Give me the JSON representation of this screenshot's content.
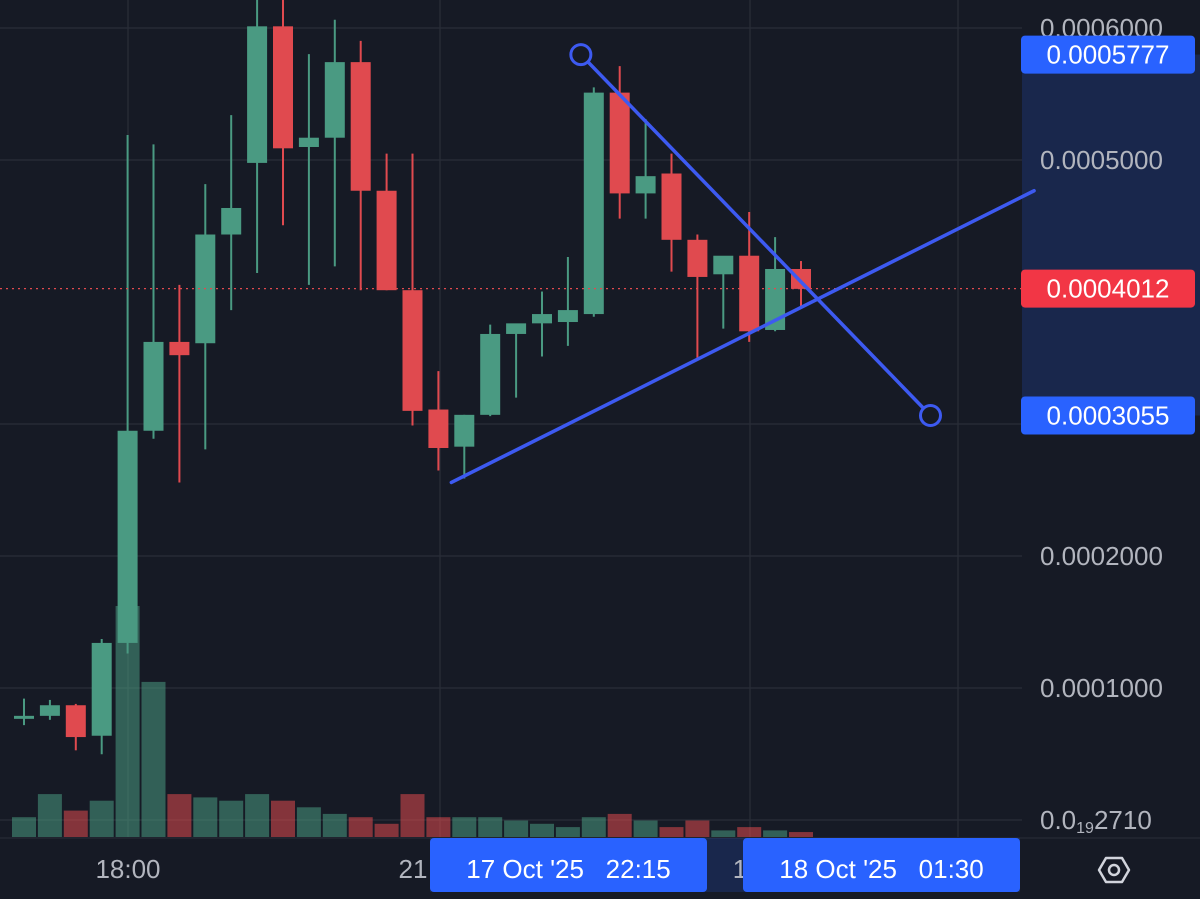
{
  "chart_data": {
    "type": "candlestick",
    "title": "",
    "ylim": [
      1.9e-05,
      0.0006
    ],
    "y_ticks": [
      "0.0006000",
      "0.0005000",
      "0.0002000",
      "0.0001000"
    ],
    "y_bottom_label": {
      "prefix": "0.0",
      "sub": "19",
      "suffix": "2710"
    },
    "x_tick_labels": [
      {
        "label": "18:00"
      },
      {
        "label": "21"
      },
      {
        "label": "1"
      }
    ],
    "price_badges": {
      "upper": {
        "label": "0.0005777",
        "value": 0.0005777,
        "color": "#2962ff"
      },
      "current": {
        "label": "0.0004012",
        "value": 0.0004012,
        "color": "#f23645"
      },
      "lower": {
        "label": "0.0003055",
        "value": 0.0003055,
        "color": "#2962ff"
      }
    },
    "time_badges": [
      {
        "label": "17 Oct '25   22:15",
        "color": "#2962ff"
      },
      {
        "label": "18 Oct '25   01:30",
        "color": "#2962ff"
      }
    ],
    "candles": [
      {
        "o": 7.8e-05,
        "h": 9.2e-05,
        "l": 7.2e-05,
        "c": 7.9e-05
      },
      {
        "o": 7.9e-05,
        "h": 9.1e-05,
        "l": 7.6e-05,
        "c": 8.7e-05
      },
      {
        "o": 8.7e-05,
        "h": 8.8e-05,
        "l": 5.3e-05,
        "c": 6.3e-05
      },
      {
        "o": 6.4e-05,
        "h": 0.000137,
        "l": 5e-05,
        "c": 0.000134
      },
      {
        "o": 0.000134,
        "h": 0.000517,
        "l": 0.000126,
        "c": 0.000294
      },
      {
        "o": 0.000294,
        "h": 0.00051,
        "l": 0.000288,
        "c": 0.000361
      },
      {
        "o": 0.000361,
        "h": 0.000404,
        "l": 0.000255,
        "c": 0.000351
      },
      {
        "o": 0.00036,
        "h": 0.00048,
        "l": 0.00028,
        "c": 0.000442
      },
      {
        "o": 0.000442,
        "h": 0.000532,
        "l": 0.000385,
        "c": 0.000462
      },
      {
        "o": 0.000496,
        "h": 0.000622,
        "l": 0.000413,
        "c": 0.000599
      },
      {
        "o": 0.000599,
        "h": 0.000622,
        "l": 0.000449,
        "c": 0.000507
      },
      {
        "o": 0.000508,
        "h": 0.000578,
        "l": 0.000404,
        "c": 0.000515
      },
      {
        "o": 0.000515,
        "h": 0.000604,
        "l": 0.000418,
        "c": 0.000572
      },
      {
        "o": 0.000572,
        "h": 0.000588,
        "l": 0.0004,
        "c": 0.000475
      },
      {
        "o": 0.000475,
        "h": 0.000503,
        "l": 0.0004,
        "c": 0.0004
      },
      {
        "o": 0.0004,
        "h": 0.000503,
        "l": 0.000298,
        "c": 0.000309
      },
      {
        "o": 0.00031,
        "h": 0.000339,
        "l": 0.000264,
        "c": 0.000281
      },
      {
        "o": 0.000282,
        "h": 0.000306,
        "l": 0.000258,
        "c": 0.000306
      },
      {
        "o": 0.000306,
        "h": 0.000374,
        "l": 0.000305,
        "c": 0.000367
      },
      {
        "o": 0.000367,
        "h": 0.000374,
        "l": 0.000319,
        "c": 0.000375
      },
      {
        "o": 0.000375,
        "h": 0.000399,
        "l": 0.00035,
        "c": 0.000382
      },
      {
        "o": 0.000376,
        "h": 0.000425,
        "l": 0.000358,
        "c": 0.000385
      },
      {
        "o": 0.000382,
        "h": 0.000553,
        "l": 0.00038,
        "c": 0.000549
      },
      {
        "o": 0.000549,
        "h": 0.000569,
        "l": 0.000454,
        "c": 0.000473
      },
      {
        "o": 0.000473,
        "h": 0.000529,
        "l": 0.000454,
        "c": 0.000486
      },
      {
        "o": 0.000488,
        "h": 0.000503,
        "l": 0.000414,
        "c": 0.000438
      },
      {
        "o": 0.000438,
        "h": 0.000442,
        "l": 0.000349,
        "c": 0.00041
      },
      {
        "o": 0.000412,
        "h": 0.000423,
        "l": 0.000371,
        "c": 0.000426
      },
      {
        "o": 0.000426,
        "h": 0.000459,
        "l": 0.000361,
        "c": 0.000369
      },
      {
        "o": 0.00037,
        "h": 0.00044,
        "l": 0.000369,
        "c": 0.000416
      },
      {
        "o": 0.000416,
        "h": 0.000422,
        "l": 0.000388,
        "c": 0.000401
      }
    ],
    "volume": [
      0.06,
      0.13,
      0.08,
      0.11,
      0.7,
      0.47,
      0.13,
      0.12,
      0.11,
      0.13,
      0.11,
      0.09,
      0.07,
      0.06,
      0.04,
      0.13,
      0.06,
      0.06,
      0.06,
      0.05,
      0.04,
      0.03,
      0.06,
      0.07,
      0.05,
      0.03,
      0.05,
      0.02,
      0.03,
      0.02,
      0.015
    ],
    "trendlines": [
      {
        "name": "upper-trendline",
        "from": {
          "candle": 21.5,
          "value": 0.0005777
        },
        "to": {
          "candle": 35,
          "value": 0.0003055
        },
        "endpoints": true
      },
      {
        "name": "lower-trendline",
        "from": {
          "candle": 16.5,
          "value": 0.000255
        },
        "to": {
          "candle": 39,
          "value": 0.000475
        },
        "endpoints": false
      }
    ],
    "colors": {
      "up": "#4a9a82",
      "down": "#e04a4f",
      "line": "#3d5af1",
      "grid": "#2a2e39",
      "background": "#161a25"
    }
  }
}
